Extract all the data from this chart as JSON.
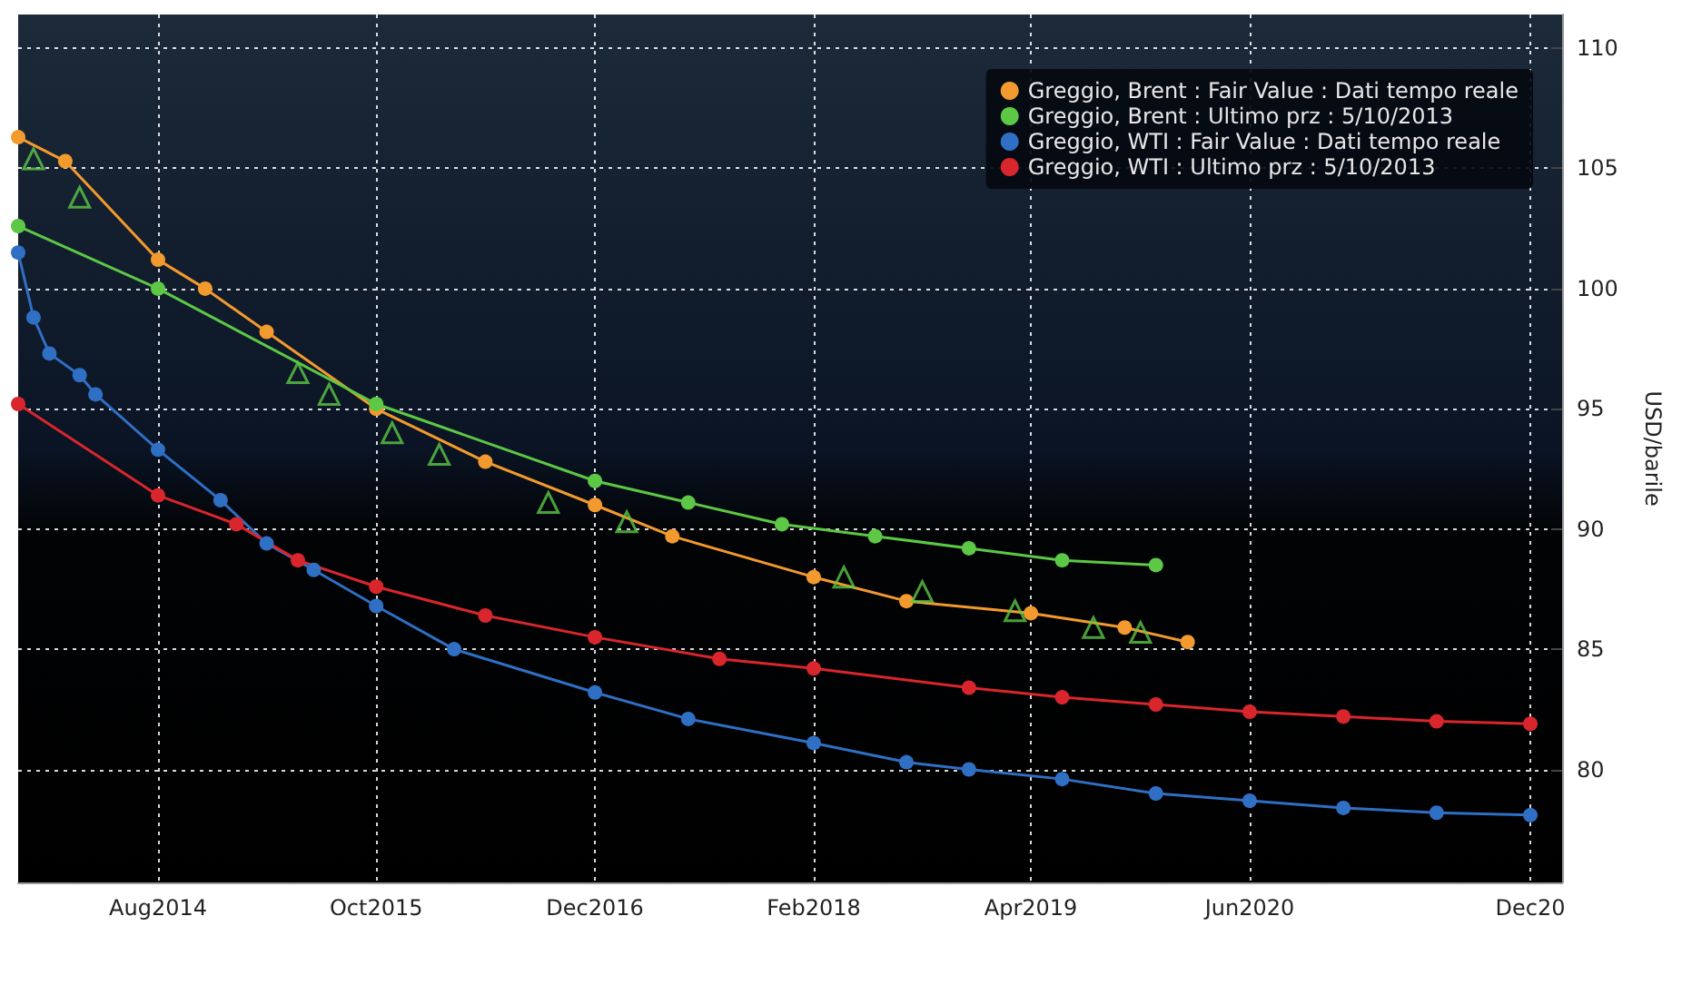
{
  "chart_data": {
    "type": "line",
    "ylabel": "USD/barile",
    "marker": "circle",
    "grid": true,
    "legend": "top right",
    "xlim": [
      "2013-11",
      "2022-02"
    ],
    "ylim": [
      75.3,
      111.4
    ],
    "xticks": [
      {
        "value": "2014-08",
        "label": "Aug2014"
      },
      {
        "value": "2015-10",
        "label": "Oct2015"
      },
      {
        "value": "2016-12",
        "label": "Dec2016"
      },
      {
        "value": "2018-02",
        "label": "Feb2018"
      },
      {
        "value": "2019-04",
        "label": "Apr2019"
      },
      {
        "value": "2020-06",
        "label": "Jun2020"
      },
      {
        "value": "2021-12",
        "label": "Dec20"
      }
    ],
    "yticks": [
      80,
      85,
      90,
      95,
      100,
      105,
      110
    ],
    "series": [
      {
        "name": "Greggio, Brent : Fair Value : Dati tempo reale",
        "color": "#f39a2e",
        "x": [
          "2013-11",
          "2014-02",
          "2014-08",
          "2014-11",
          "2015-03",
          "2015-10",
          "2016-05",
          "2016-12",
          "2017-05",
          "2018-02",
          "2018-08",
          "2019-04",
          "2019-10",
          "2020-02"
        ],
        "values": [
          106.3,
          105.3,
          101.2,
          100.0,
          98.2,
          95.0,
          92.8,
          91.0,
          89.7,
          88.0,
          87.0,
          86.5,
          85.9,
          85.3
        ]
      },
      {
        "name": "Greggio, Brent : Ultimo prz : 5/10/2013",
        "color": "#5cc846",
        "x": [
          "2013-11",
          "2014-08",
          "2015-10",
          "2016-12",
          "2017-06",
          "2017-12",
          "2018-06",
          "2018-12",
          "2019-06",
          "2019-12"
        ],
        "values": [
          102.6,
          100.0,
          95.2,
          92.0,
          91.1,
          90.2,
          89.7,
          89.2,
          88.7,
          88.5
        ]
      },
      {
        "name": "Greggio, WTI : Fair Value : Dati tempo reale",
        "color": "#2f6fc4",
        "x": [
          "2013-11",
          "2013-12",
          "2014-01",
          "2014-03",
          "2014-04",
          "2014-08",
          "2014-12",
          "2015-03",
          "2015-06",
          "2015-10",
          "2016-03",
          "2016-12",
          "2017-06",
          "2018-02",
          "2018-08",
          "2018-12",
          "2019-06",
          "2019-12",
          "2020-06",
          "2020-12",
          "2021-06",
          "2021-12"
        ],
        "values": [
          101.5,
          98.8,
          97.3,
          96.4,
          95.6,
          93.3,
          91.2,
          89.4,
          88.3,
          86.8,
          85.0,
          83.2,
          82.1,
          81.1,
          80.3,
          80.0,
          79.6,
          79.0,
          78.7,
          78.4,
          78.2,
          78.1
        ]
      },
      {
        "name": "Greggio, WTI : Ultimo prz : 5/10/2013",
        "color": "#d9262c",
        "x": [
          "2013-11",
          "2014-08",
          "2015-01",
          "2015-05",
          "2015-10",
          "2016-05",
          "2016-12",
          "2017-08",
          "2018-02",
          "2018-12",
          "2019-06",
          "2019-12",
          "2020-06",
          "2020-12",
          "2021-06",
          "2021-12"
        ],
        "values": [
          95.2,
          91.4,
          90.2,
          88.7,
          87.6,
          86.4,
          85.5,
          84.6,
          84.2,
          83.4,
          83.0,
          82.7,
          82.4,
          82.2,
          82.0,
          81.9
        ]
      },
      {
        "type": "scatter",
        "marker": "triangle",
        "color": "#5cc846",
        "x": [
          "2013-12",
          "2014-03",
          "2015-05",
          "2015-07",
          "2015-11",
          "2016-02",
          "2016-09",
          "2017-02",
          "2018-04",
          "2018-09",
          "2019-03",
          "2019-08",
          "2019-11"
        ],
        "values": [
          105.4,
          103.8,
          96.5,
          95.6,
          94.0,
          93.1,
          91.1,
          90.3,
          88.0,
          87.4,
          86.6,
          85.9,
          85.7
        ]
      }
    ]
  }
}
